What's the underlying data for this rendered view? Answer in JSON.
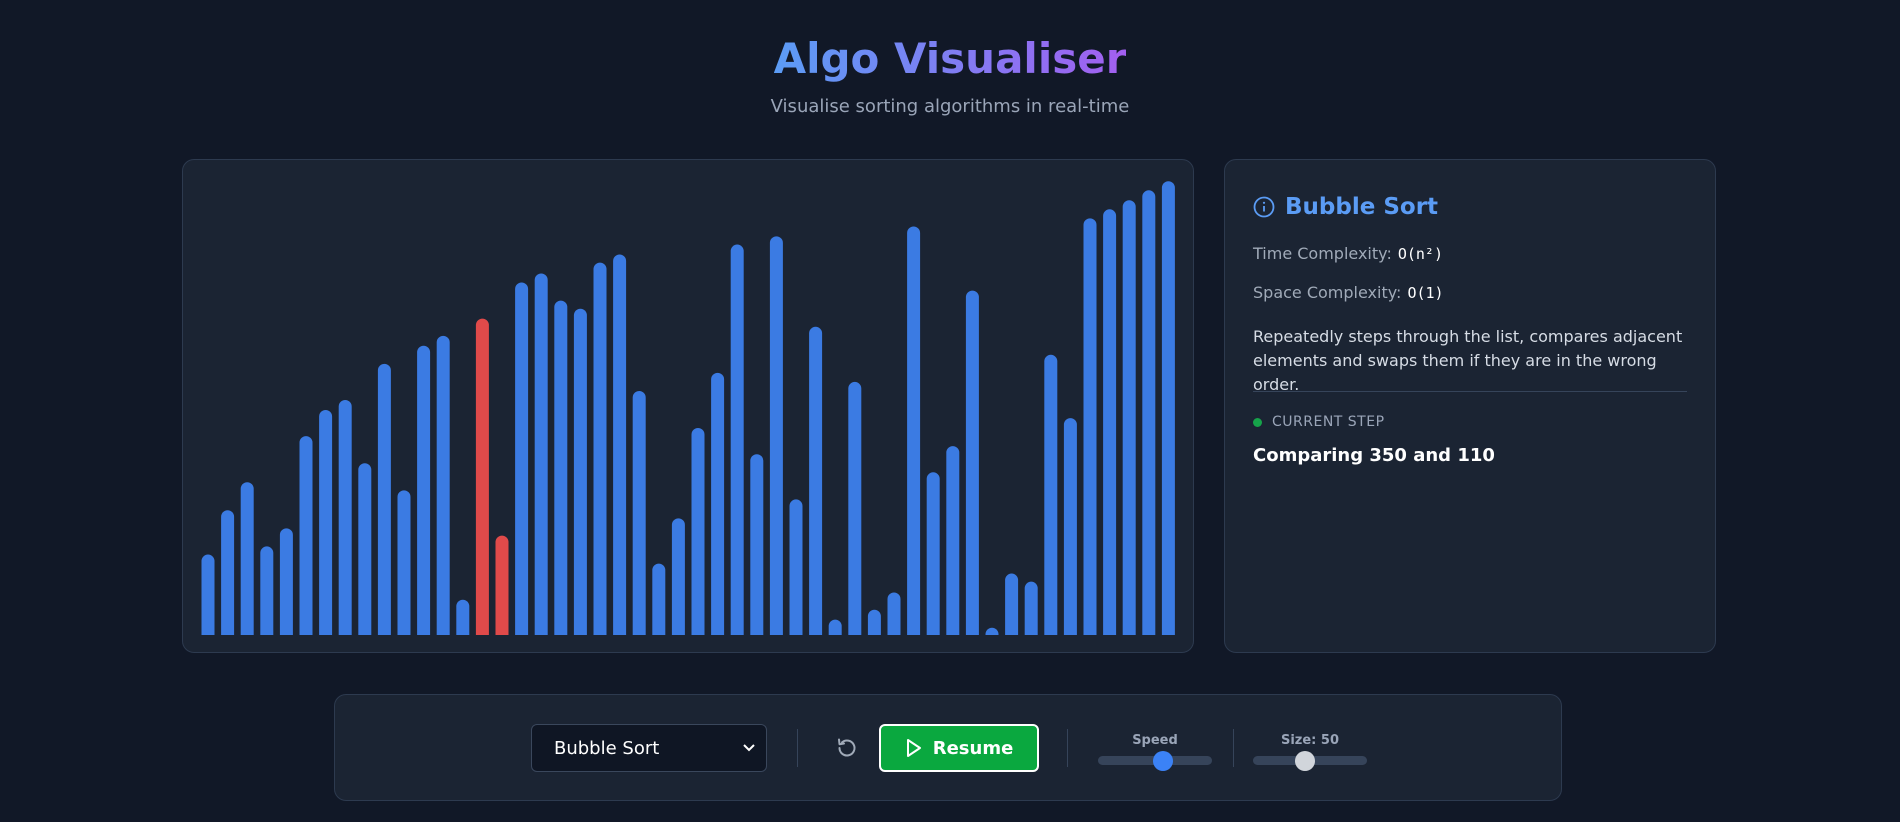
{
  "header": {
    "title": "Algo Visualiser",
    "subtitle": "Visualise sorting algorithms in real-time"
  },
  "bars": {
    "values": [
      89,
      138,
      169,
      98,
      118,
      220,
      249,
      260,
      190,
      300,
      160,
      320,
      331,
      39,
      350,
      110,
      390,
      400,
      370,
      361,
      412,
      421,
      270,
      79,
      129,
      229,
      290,
      432,
      200,
      441,
      150,
      341,
      17,
      280,
      28,
      47,
      452,
      180,
      209,
      381,
      8,
      68,
      59,
      310,
      240,
      461,
      471,
      481,
      492,
      502
    ],
    "color": "#3b7be3",
    "highlight_color": "#e04a4a",
    "highlight": [
      14,
      15
    ],
    "ylim": [
      0,
      520
    ]
  },
  "info": {
    "title": "Bubble Sort",
    "time_label": "Time Complexity:",
    "time_value": "O(n²)",
    "space_label": "Space Complexity:",
    "space_value": "O(1)",
    "description": "Repeatedly steps through the list, compares adjacent elements and swaps them if they are in the wrong order.",
    "step_label": "CURRENT STEP",
    "step_text": "Comparing 350 and 110"
  },
  "controls": {
    "algorithm": "Bubble Sort",
    "resume": "Resume",
    "speed": "Speed",
    "size": "Size: 50"
  }
}
